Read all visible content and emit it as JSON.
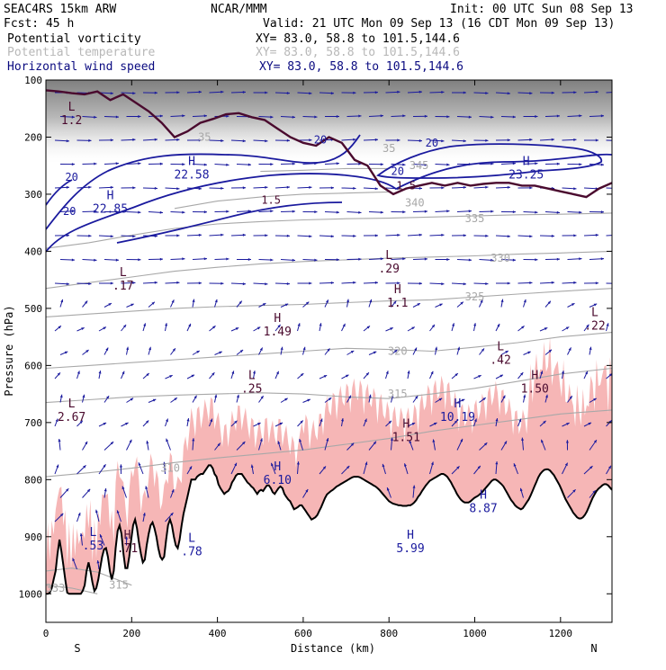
{
  "header": {
    "model": "SEAC4RS 15km ARW",
    "org": "NCAR/MMM",
    "init": "Init: 00 UTC Sun 08 Sep 13",
    "fcst": "Fcst:   45 h",
    "valid": "Valid: 21 UTC Mon 09 Sep 13 (16 CDT Mon 09 Sep 13)",
    "fields": [
      {
        "name": "Potential vorticity",
        "xy": "XY=  83.0, 58.8 to 101.5,144.6",
        "color": "#000000"
      },
      {
        "name": "Potential temperature",
        "xy": "XY=  83.0, 58.8 to 101.5,144.6",
        "color": "#b8b8b8"
      },
      {
        "name": "Horizontal wind speed",
        "xy": "XY=  83.0, 58.8 to 101.5,144.6",
        "color": "#0a0a80"
      }
    ]
  },
  "colors": {
    "pv": "#4a0a2e",
    "theta": "#a8a8a8",
    "wind": "#1a1a9e",
    "terrain": "#000000",
    "shade": "#f6b6b6",
    "hl_pv": "#4a0a2e",
    "hl_wind": "#1a1a9e"
  },
  "chart_data": {
    "type": "cross-section",
    "xlabel": "Distance (km)",
    "ylabel": "Pressure (hPa)",
    "xlim": [
      0,
      1320
    ],
    "ylim": [
      1050,
      100
    ],
    "x_ticks": [
      "0",
      "200",
      "400",
      "600",
      "800",
      "1000",
      "1200"
    ],
    "x_tick_values": [
      0,
      200,
      400,
      600,
      800,
      1000,
      1200
    ],
    "y_ticks": [
      "100",
      "200",
      "300",
      "400",
      "500",
      "600",
      "700",
      "800",
      "900",
      "1000"
    ],
    "y_tick_values": [
      100,
      200,
      300,
      400,
      500,
      600,
      700,
      800,
      900,
      1000
    ],
    "endpoint_labels": {
      "left": "S",
      "right": "N"
    },
    "theta_contours": [
      {
        "label": "310",
        "x": [
          0,
          100,
          200,
          300,
          400,
          500,
          600,
          700,
          800,
          900,
          1000,
          1100,
          1200,
          1320
        ],
        "p": [
          795,
          788,
          780,
          770,
          762,
          755,
          748,
          738,
          728,
          715,
          705,
          695,
          685,
          678
        ],
        "label_at": [
          290,
          780
        ]
      },
      {
        "label": "315",
        "x": [
          0,
          100,
          200,
          300,
          400,
          500,
          600,
          700,
          800,
          900,
          1000,
          1100,
          1200,
          1320
        ],
        "p": [
          665,
          660,
          655,
          652,
          650,
          648,
          650,
          655,
          658,
          650,
          640,
          628,
          615,
          605
        ],
        "label_at": [
          700,
          655
        ]
      },
      {
        "label": "320",
        "x": [
          0,
          100,
          200,
          300,
          400,
          500,
          600,
          700,
          800,
          900,
          1000,
          1100,
          1200,
          1320
        ],
        "p": [
          605,
          600,
          595,
          590,
          585,
          580,
          575,
          570,
          572,
          575,
          568,
          560,
          550,
          542
        ],
        "label_at": [
          720,
          568
        ]
      },
      {
        "label": "325",
        "x": [
          0,
          100,
          200,
          300,
          400,
          500,
          600,
          700,
          800,
          900,
          1000,
          1100,
          1200,
          1320
        ],
        "p": [
          515,
          510,
          505,
          500,
          497,
          495,
          493,
          490,
          487,
          485,
          480,
          475,
          470,
          465
        ],
        "label_at": [
          910,
          487
        ]
      },
      {
        "label": "330",
        "x": [
          0,
          100,
          200,
          300,
          400,
          500,
          600,
          700,
          800,
          900,
          1000,
          1100,
          1200,
          1320
        ],
        "p": [
          465,
          455,
          445,
          435,
          428,
          422,
          418,
          415,
          412,
          410,
          408,
          405,
          403,
          400
        ],
        "label_at": [
          690,
          415
        ]
      },
      {
        "label": "335",
        "x": [
          0,
          100,
          200,
          300,
          400,
          500,
          600,
          700,
          800,
          900,
          1000,
          1100,
          1200,
          1320
        ],
        "p": [
          395,
          385,
          372,
          360,
          352,
          348,
          345,
          343,
          342,
          340,
          338,
          336,
          335,
          333
        ],
        "label_at": [
          700,
          343
        ]
      },
      {
        "label": "340",
        "x": [
          300,
          400,
          500,
          600,
          700,
          800
        ],
        "p": [
          325,
          312,
          305,
          300,
          298,
          296
        ],
        "label_at": [
          800,
          296
        ]
      },
      {
        "label": "345",
        "x": [
          500,
          600,
          700,
          800
        ],
        "p": [
          260,
          258,
          255,
          255
        ],
        "label_at": [
          700,
          255
        ]
      },
      {
        "label": "335",
        "x": [
          0,
          60,
          120,
          200
        ],
        "p": [
          960,
          955,
          962,
          985
        ],
        "label_at": [
          165,
          975
        ]
      },
      {
        "label": "330",
        "x": [
          0,
          60,
          120
        ],
        "p": [
          985,
          990,
          1000
        ],
        "label_at": [
          10,
          975
        ]
      }
    ],
    "theta_extra_labels": [
      {
        "label": "310",
        "at": [
          290,
          780
        ]
      },
      {
        "label": "335",
        "at": [
          1000,
          343
        ]
      },
      {
        "label": "330",
        "at": [
          1060,
          412
        ]
      },
      {
        "label": "325",
        "at": [
          1000,
          480
        ]
      },
      {
        "label": "320",
        "at": [
          820,
          575
        ]
      },
      {
        "label": "315",
        "at": [
          820,
          650
        ]
      },
      {
        "label": "345",
        "at": [
          870,
          250
        ]
      },
      {
        "label": "35",
        "at": [
          800,
          220
        ]
      },
      {
        "label": "35",
        "at": [
          370,
          200
        ]
      },
      {
        "label": "333",
        "at": [
          22,
          990
        ]
      },
      {
        "label": "340",
        "at": [
          860,
          315
        ]
      },
      {
        "label": "315",
        "at": [
          170,
          985
        ]
      }
    ],
    "pv_contour_labels": [
      {
        "label": "1.5",
        "at": [
          840,
          285
        ]
      },
      {
        "label": "1.5",
        "at": [
          525,
          310
        ]
      }
    ],
    "wind_contour_labels": [
      {
        "label": "20",
        "at": [
          640,
          205
        ]
      },
      {
        "label": "20",
        "at": [
          60,
          270
        ]
      },
      {
        "label": "20",
        "at": [
          55,
          330
        ]
      },
      {
        "label": "20",
        "at": [
          820,
          260
        ]
      },
      {
        "label": "20",
        "at": [
          900,
          210
        ]
      }
    ],
    "hl_labels": [
      {
        "letter": "L",
        "value": "1.2",
        "at": [
          60,
          160
        ],
        "color": "pv"
      },
      {
        "letter": "H",
        "value": "22.58",
        "at": [
          340,
          255
        ],
        "color": "wind"
      },
      {
        "letter": "H",
        "value": "22.85",
        "at": [
          150,
          315
        ],
        "color": "wind"
      },
      {
        "letter": "H",
        "value": "23.25",
        "at": [
          1120,
          255
        ],
        "color": "wind"
      },
      {
        "letter": "L",
        "value": ".29",
        "at": [
          800,
          420
        ],
        "color": "pv"
      },
      {
        "letter": "L",
        "value": ".17",
        "at": [
          180,
          450
        ],
        "color": "pv"
      },
      {
        "letter": "H",
        "value": "1.1",
        "at": [
          820,
          480
        ],
        "color": "pv"
      },
      {
        "letter": "H",
        "value": "1.49",
        "at": [
          540,
          530
        ],
        "color": "pv"
      },
      {
        "letter": "L",
        "value": ".22",
        "at": [
          1280,
          520
        ],
        "color": "pv"
      },
      {
        "letter": "L",
        "value": ".42",
        "at": [
          1060,
          580
        ],
        "color": "pv"
      },
      {
        "letter": "L",
        "value": ".25",
        "at": [
          480,
          630
        ],
        "color": "pv"
      },
      {
        "letter": "H",
        "value": "1.50",
        "at": [
          1140,
          630
        ],
        "color": "pv"
      },
      {
        "letter": "L",
        "value": "2.67",
        "at": [
          60,
          680
        ],
        "color": "pv"
      },
      {
        "letter": "H",
        "value": "10.19",
        "at": [
          960,
          680
        ],
        "color": "wind"
      },
      {
        "letter": "H",
        "value": "1.51",
        "at": [
          840,
          715
        ],
        "color": "pv"
      },
      {
        "letter": "H",
        "value": "6.10",
        "at": [
          540,
          790
        ],
        "color": "wind"
      },
      {
        "letter": "H",
        "value": "8.87",
        "at": [
          1020,
          840
        ],
        "color": "wind"
      },
      {
        "letter": "H",
        "value": "5.99",
        "at": [
          850,
          910
        ],
        "color": "wind"
      },
      {
        "letter": "L",
        "value": ".53",
        "at": [
          110,
          905
        ],
        "color": "wind"
      },
      {
        "letter": "H",
        "value": ".71",
        "at": [
          190,
          910
        ],
        "color": "pv"
      },
      {
        "letter": "L",
        "value": ".78",
        "at": [
          340,
          915
        ],
        "color": "wind"
      }
    ],
    "terrain_p": [
      1000,
      1000,
      998,
      990,
      975,
      960,
      930,
      905,
      925,
      950,
      975,
      998,
      1000,
      1000,
      1000,
      1000,
      1000,
      1000,
      1000,
      995,
      985,
      960,
      945,
      960,
      980,
      995,
      990,
      975,
      955,
      935,
      922,
      920,
      935,
      960,
      975,
      960,
      920,
      890,
      880,
      895,
      930,
      955,
      955,
      935,
      905,
      880,
      870,
      885,
      910,
      930,
      945,
      940,
      915,
      895,
      880,
      875,
      885,
      900,
      920,
      935,
      940,
      935,
      905,
      880,
      870,
      880,
      900,
      915,
      920,
      905,
      880,
      860,
      845,
      830,
      815,
      800,
      800,
      800,
      795,
      792,
      790,
      790,
      785,
      780,
      775,
      775,
      780,
      790,
      795,
      808,
      815,
      820,
      825,
      822,
      820,
      815,
      805,
      800,
      793,
      790,
      790,
      790,
      795,
      800,
      805,
      808,
      812,
      815,
      820,
      825,
      820,
      818,
      820,
      815,
      810,
      810,
      815,
      822,
      825,
      820,
      815,
      812,
      815,
      825,
      830,
      835,
      838,
      845,
      852,
      850,
      848,
      845,
      845,
      850,
      855,
      860,
      865,
      870,
      868,
      866,
      862,
      855,
      848,
      840,
      832,
      826,
      823,
      820,
      818,
      815,
      812,
      810,
      808,
      806,
      804,
      802,
      800,
      798,
      796,
      795,
      795,
      795,
      796,
      798,
      800,
      802,
      804,
      806,
      808,
      810,
      812,
      815,
      818,
      822,
      826,
      830,
      834,
      838,
      840,
      842,
      843,
      844,
      845,
      845,
      846,
      846,
      846,
      845,
      845,
      843,
      840,
      836,
      830,
      826,
      820,
      815,
      810,
      806,
      802,
      800,
      798,
      796,
      794,
      792,
      790,
      790,
      792,
      795,
      800,
      805,
      812,
      818,
      825,
      830,
      835,
      838,
      840,
      840,
      840,
      838,
      835,
      832,
      830,
      828,
      825,
      822,
      818,
      814,
      810,
      806,
      802,
      800,
      800,
      802,
      805,
      808,
      812,
      818,
      824,
      830,
      836,
      840,
      845,
      848,
      850,
      852,
      850,
      845,
      840,
      835,
      828,
      820,
      812,
      804,
      796,
      790,
      786,
      783,
      782,
      782,
      784,
      788,
      792,
      798,
      804,
      810,
      818,
      826,
      834,
      840,
      846,
      852,
      858,
      862,
      866,
      868,
      868,
      866,
      862,
      856,
      848,
      840,
      832,
      826,
      820,
      816,
      813,
      810,
      808,
      808,
      810,
      814,
      818
    ],
    "terrain_note": "",
    "pv_main_line_x": [
      0,
      30,
      60,
      90,
      120,
      150,
      180,
      210,
      240,
      270,
      300,
      330,
      360,
      390,
      420,
      450,
      480,
      510,
      540,
      570,
      600,
      630,
      660,
      690,
      720,
      750,
      780,
      810,
      840,
      870,
      900,
      930,
      960,
      990,
      1020,
      1050,
      1080,
      1110,
      1140,
      1170,
      1200,
      1230,
      1260,
      1290,
      1320
    ],
    "pv_main_line_p": [
      118,
      120,
      123,
      125,
      120,
      135,
      125,
      140,
      155,
      175,
      200,
      190,
      175,
      168,
      160,
      158,
      165,
      170,
      185,
      200,
      210,
      215,
      200,
      210,
      240,
      250,
      285,
      300,
      290,
      285,
      280,
      285,
      280,
      285,
      282,
      280,
      280,
      285,
      285,
      290,
      295,
      300,
      305,
      290,
      280
    ]
  }
}
